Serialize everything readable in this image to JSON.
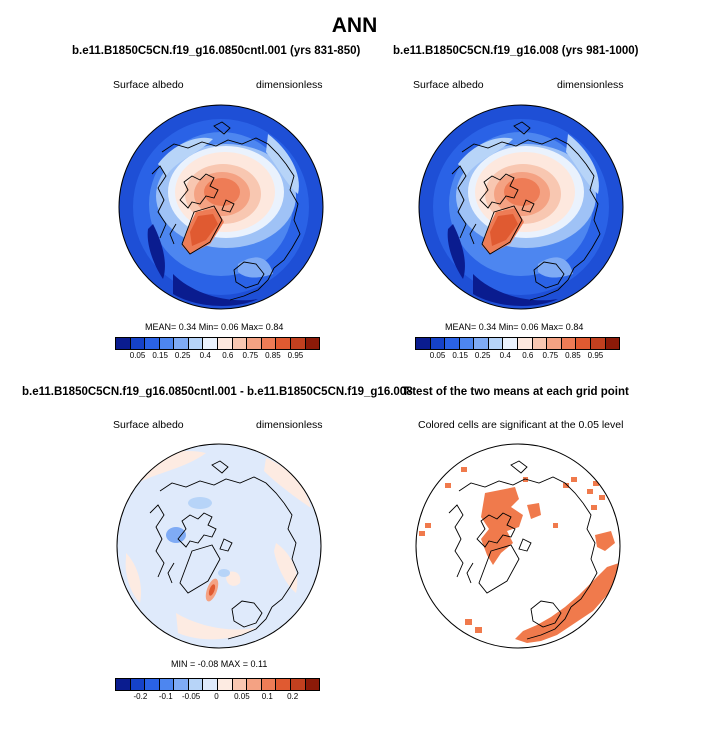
{
  "figure": {
    "title": "ANN"
  },
  "colors": {
    "albedo_levels": [
      "#0a1c8f",
      "#1542c9",
      "#2a62e6",
      "#4d86f0",
      "#7fabf5",
      "#b7d4f8",
      "#eaf2fd",
      "#fde8de",
      "#f8c7b1",
      "#f4a283",
      "#ee7c56",
      "#e05a31",
      "#c2401f",
      "#8c1a08"
    ],
    "diff_levels": [
      "#0a1c8f",
      "#1542c9",
      "#2a62e6",
      "#4d86f0",
      "#7fabf5",
      "#b7d4f8",
      "#dfeafb",
      "#fdebe2",
      "#f8c7b1",
      "#f4a283",
      "#ee7c56",
      "#e05a31",
      "#c2401f",
      "#8c1a08"
    ],
    "significant": "#f07a4c"
  },
  "panels": [
    {
      "title": "b.e11.B1850C5CN.f19_g16.0850cntl.001 (yrs 831-850)",
      "left_label": "Surface albedo",
      "right_label": "dimensionless",
      "stats": "MEAN=  0.34  Min=  0.06  Max=  0.84",
      "colorbar_labels": [
        "0.05",
        "0.15",
        "0.25",
        "0.4",
        "0.6",
        "0.75",
        "0.85",
        "0.95"
      ]
    },
    {
      "title": "b.e11.B1850C5CN.f19_g16.008 (yrs 981-1000)",
      "left_label": "Surface albedo",
      "right_label": "dimensionless",
      "stats": "MEAN=  0.34  Min=  0.06  Max=  0.84",
      "colorbar_labels": [
        "0.05",
        "0.15",
        "0.25",
        "0.4",
        "0.6",
        "0.75",
        "0.85",
        "0.95"
      ]
    },
    {
      "title": "b.e11.B1850C5CN.f19_g16.0850cntl.001 - b.e11.B1850C5CN.f19_g16.008",
      "left_label": "Surface albedo",
      "right_label": "dimensionless",
      "stats": "MIN =  -0.08 MAX =  0.11",
      "colorbar_labels": [
        "-0.2",
        "-0.1",
        "-0.05",
        "0",
        "0.05",
        "0.1",
        "0.2"
      ]
    },
    {
      "title": "T-test of the two means at each grid point",
      "subtitle": "Colored cells are significant at the 0.05 level"
    }
  ],
  "chart_data": [
    {
      "type": "heatmap",
      "title": "b.e11.B1850C5CN.f19_g16.0850cntl.001 (yrs 831-850)",
      "variable": "Surface albedo",
      "units": "dimensionless",
      "projection": "polar stereographic (Northern Hemisphere)",
      "mean": 0.34,
      "min": 0.06,
      "max": 0.84,
      "levels": [
        0.05,
        0.1,
        0.15,
        0.2,
        0.25,
        0.3,
        0.4,
        0.5,
        0.6,
        0.7,
        0.75,
        0.8,
        0.85,
        0.9,
        0.95
      ]
    },
    {
      "type": "heatmap",
      "title": "b.e11.B1850C5CN.f19_g16.008 (yrs 981-1000)",
      "variable": "Surface albedo",
      "units": "dimensionless",
      "projection": "polar stereographic (Northern Hemisphere)",
      "mean": 0.34,
      "min": 0.06,
      "max": 0.84,
      "levels": [
        0.05,
        0.1,
        0.15,
        0.2,
        0.25,
        0.3,
        0.4,
        0.5,
        0.6,
        0.7,
        0.75,
        0.8,
        0.85,
        0.9,
        0.95
      ]
    },
    {
      "type": "heatmap",
      "title": "b.e11.B1850C5CN.f19_g16.0850cntl.001 - b.e11.B1850C5CN.f19_g16.008",
      "variable": "Surface albedo",
      "units": "dimensionless",
      "min": -0.08,
      "max": 0.11,
      "levels": [
        -0.2,
        -0.15,
        -0.1,
        -0.07,
        -0.05,
        -0.02,
        0,
        0.02,
        0.05,
        0.07,
        0.1,
        0.15,
        0.2
      ]
    },
    {
      "type": "heatmap",
      "title": "T-test of the two means at each grid point",
      "note": "Colored cells are significant at the 0.05 level",
      "significance_level": 0.05
    }
  ]
}
